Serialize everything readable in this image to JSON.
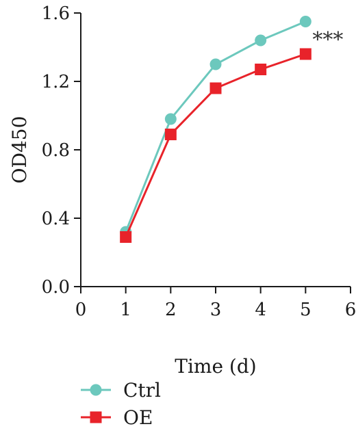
{
  "chart_data": {
    "type": "line",
    "title": "",
    "xlabel": "Time (d)",
    "ylabel": "OD450",
    "xlim": [
      0,
      6
    ],
    "ylim": [
      0,
      1.6
    ],
    "xticks": [
      "0",
      "1",
      "2",
      "3",
      "4",
      "5",
      "6"
    ],
    "yticks": [
      "0.0",
      "0.4",
      "0.8",
      "1.2",
      "1.6"
    ],
    "x": [
      1,
      2,
      3,
      4,
      5
    ],
    "series": [
      {
        "name": "Ctrl",
        "marker": "circle",
        "color": "#6cc8bd",
        "values": [
          0.32,
          0.98,
          1.3,
          1.44,
          1.55
        ]
      },
      {
        "name": "OE",
        "marker": "square",
        "color": "#e8232a",
        "values": [
          0.29,
          0.89,
          1.16,
          1.27,
          1.36
        ]
      }
    ],
    "annotations": [
      {
        "text": "***",
        "x": 5,
        "y": 1.46
      }
    ],
    "legend": "bottom-left",
    "grid": false
  }
}
